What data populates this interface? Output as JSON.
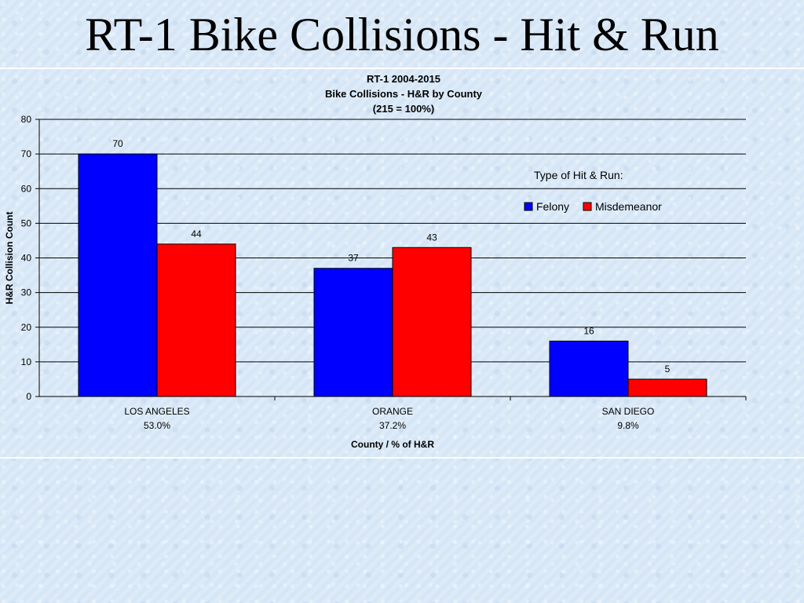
{
  "slide": {
    "title": "RT-1 Bike Collisions - Hit & Run"
  },
  "chart_data": {
    "type": "bar",
    "title": [
      "RT-1 2004-2015",
      "Bike Collisions - H&R by County",
      "(215 = 100%)"
    ],
    "xlabel": "County / % of H&R",
    "ylabel": "H&R Collision Count",
    "ylim": [
      0,
      80
    ],
    "yticks": [
      0,
      10,
      20,
      30,
      40,
      50,
      60,
      70,
      80
    ],
    "categories": [
      "LOS ANGELES",
      "ORANGE",
      "SAN DIEGO"
    ],
    "category_pcts": [
      "53.0%",
      "37.2%",
      "9.8%"
    ],
    "series": [
      {
        "name": "Felony",
        "values": [
          70,
          37,
          16
        ],
        "color": "#0000ff"
      },
      {
        "name": "Misdemeanor",
        "values": [
          44,
          43,
          5
        ],
        "color": "#ff0000"
      }
    ],
    "legend_title": "Type of Hit & Run:",
    "legend_position": "right, inside plot",
    "grid": true
  }
}
